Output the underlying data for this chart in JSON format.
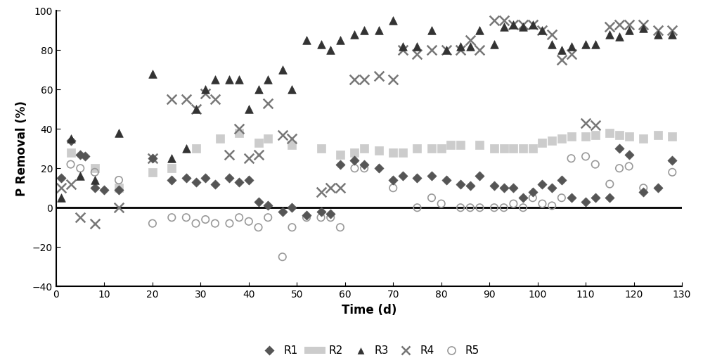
{
  "R1": {
    "x": [
      1,
      3,
      5,
      6,
      8,
      10,
      13,
      20,
      24,
      27,
      29,
      31,
      33,
      36,
      38,
      40,
      42,
      44,
      47,
      49,
      52,
      55,
      57,
      59,
      62,
      64,
      67,
      70,
      72,
      75,
      78,
      81,
      84,
      86,
      88,
      91,
      93,
      95,
      97,
      99,
      101,
      103,
      105,
      107,
      110,
      112,
      115,
      117,
      119,
      122,
      125,
      128
    ],
    "y": [
      15,
      34,
      27,
      26,
      10,
      9,
      9,
      25,
      14,
      15,
      13,
      15,
      12,
      15,
      13,
      14,
      3,
      1,
      -2,
      0,
      -4,
      -2,
      -3,
      22,
      24,
      22,
      20,
      14,
      16,
      15,
      16,
      14,
      12,
      11,
      16,
      11,
      10,
      10,
      5,
      8,
      12,
      10,
      14,
      5,
      3,
      5,
      5,
      30,
      27,
      8,
      10,
      24
    ],
    "color": "#555555",
    "marker": "D",
    "markersize": 8,
    "label": "R1"
  },
  "R2": {
    "x": [
      3,
      8,
      13,
      20,
      24,
      29,
      34,
      38,
      42,
      44,
      49,
      55,
      59,
      62,
      64,
      67,
      70,
      72,
      75,
      78,
      80,
      82,
      84,
      88,
      91,
      93,
      95,
      97,
      99,
      101,
      103,
      105,
      107,
      110,
      112,
      115,
      117,
      119,
      122,
      125,
      128
    ],
    "y": [
      28,
      20,
      10,
      18,
      20,
      30,
      35,
      38,
      33,
      35,
      32,
      30,
      27,
      28,
      30,
      29,
      28,
      28,
      30,
      30,
      30,
      32,
      32,
      32,
      30,
      30,
      30,
      30,
      30,
      33,
      34,
      35,
      36,
      36,
      37,
      38,
      37,
      36,
      35,
      37,
      36
    ],
    "color": "#cccccc",
    "marker": "s",
    "markersize": 10,
    "label": "R2"
  },
  "R3": {
    "x": [
      1,
      3,
      5,
      8,
      13,
      20,
      24,
      27,
      29,
      31,
      33,
      36,
      38,
      40,
      42,
      44,
      47,
      49,
      52,
      55,
      57,
      59,
      62,
      64,
      67,
      70,
      72,
      75,
      78,
      81,
      84,
      86,
      88,
      91,
      93,
      95,
      97,
      99,
      101,
      103,
      105,
      107,
      110,
      112,
      115,
      117,
      119,
      122,
      125,
      128
    ],
    "y": [
      5,
      35,
      16,
      14,
      38,
      68,
      25,
      30,
      50,
      60,
      65,
      65,
      65,
      50,
      60,
      65,
      70,
      60,
      85,
      83,
      80,
      85,
      88,
      90,
      90,
      95,
      82,
      82,
      90,
      80,
      82,
      82,
      90,
      83,
      92,
      93,
      92,
      93,
      90,
      83,
      80,
      82,
      83,
      83,
      88,
      87,
      90,
      91,
      88,
      88
    ],
    "color": "#333333",
    "marker": "^",
    "markersize": 10,
    "label": "R3"
  },
  "R4": {
    "x": [
      1,
      3,
      5,
      8,
      13,
      20,
      24,
      27,
      29,
      31,
      33,
      36,
      38,
      40,
      42,
      44,
      47,
      49,
      55,
      57,
      59,
      62,
      64,
      67,
      70,
      72,
      75,
      78,
      81,
      84,
      86,
      88,
      91,
      93,
      95,
      97,
      99,
      101,
      103,
      105,
      107,
      110,
      112,
      115,
      117,
      119,
      122,
      125,
      128
    ],
    "y": [
      10,
      12,
      -5,
      -8,
      0,
      25,
      55,
      55,
      50,
      58,
      55,
      27,
      40,
      25,
      27,
      53,
      37,
      35,
      8,
      10,
      10,
      65,
      65,
      67,
      65,
      80,
      78,
      80,
      80,
      80,
      85,
      80,
      95,
      95,
      93,
      93,
      93,
      90,
      88,
      75,
      78,
      43,
      42,
      92,
      93,
      93,
      93,
      90,
      90
    ],
    "color": "#777777",
    "marker": "x",
    "markersize": 11,
    "label": "R4"
  },
  "R5": {
    "x": [
      3,
      5,
      8,
      13,
      20,
      24,
      27,
      29,
      31,
      33,
      36,
      38,
      40,
      42,
      44,
      47,
      49,
      52,
      55,
      57,
      59,
      62,
      64,
      70,
      75,
      78,
      80,
      84,
      86,
      88,
      91,
      93,
      95,
      97,
      99,
      101,
      103,
      105,
      107,
      110,
      112,
      115,
      117,
      119,
      122,
      128
    ],
    "y": [
      22,
      20,
      18,
      14,
      -8,
      -5,
      -5,
      -8,
      -6,
      -8,
      -8,
      -5,
      -7,
      -10,
      -5,
      -25,
      -10,
      -5,
      -5,
      -5,
      -10,
      20,
      20,
      10,
      0,
      5,
      2,
      0,
      0,
      0,
      0,
      0,
      2,
      0,
      5,
      2,
      1,
      5,
      25,
      26,
      22,
      12,
      20,
      21,
      10,
      18
    ],
    "color": "#999999",
    "marker": "o",
    "markersize": 9,
    "label": "R5"
  },
  "xlabel": "Time (d)",
  "ylabel": "P Removal (%)",
  "xlim": [
    0,
    130
  ],
  "ylim": [
    -40,
    100
  ],
  "yticks": [
    -40,
    -20,
    0,
    20,
    40,
    60,
    80,
    100
  ],
  "xticks": [
    0,
    10,
    20,
    30,
    40,
    50,
    60,
    70,
    80,
    90,
    100,
    110,
    120,
    130
  ]
}
